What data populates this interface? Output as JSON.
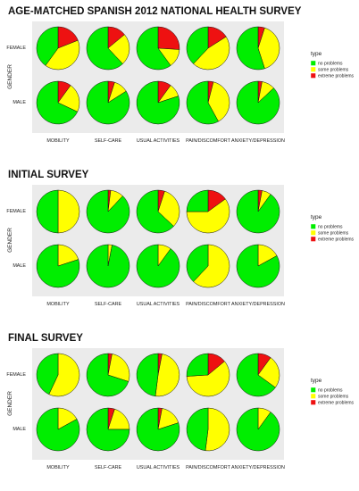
{
  "chart_data": [
    {
      "type": "pie",
      "title": "AGE-MATCHED SPANISH 2012 NATIONAL HEALTH SURVEY",
      "ylabel": "GENDER",
      "columns": [
        "MOBILITY",
        "SELF-CARE",
        "USUAL ACTIVITIES",
        "PAIN/DISCOMFORT",
        "ANXIETY/DEPRESSION"
      ],
      "rows": [
        "FEMALE",
        "MALE"
      ],
      "categories": [
        "no problems",
        "some problems",
        "extreme problems"
      ],
      "values": [
        [
          [
            40,
            41,
            19
          ],
          [
            62,
            24,
            14
          ],
          [
            60,
            14,
            26
          ],
          [
            38,
            46,
            16
          ],
          [
            55,
            40,
            5
          ]
        ],
        [
          [
            68,
            22,
            10
          ],
          [
            84,
            11,
            5
          ],
          [
            80,
            10,
            10
          ],
          [
            58,
            38,
            4
          ],
          [
            87,
            10,
            3
          ]
        ]
      ]
    },
    {
      "type": "pie",
      "title": "INITIAL SURVEY",
      "ylabel": "GENDER",
      "columns": [
        "MOBILITY",
        "SELF-CARE",
        "USUAL ACTIVITIES",
        "PAIN/DISCOMFORT",
        "ANXIETY/DEPRESSION"
      ],
      "rows": [
        "FEMALE",
        "MALE"
      ],
      "categories": [
        "no problems",
        "some problems",
        "extreme problems"
      ],
      "values": [
        [
          [
            50,
            50,
            0
          ],
          [
            88,
            10,
            2
          ],
          [
            63,
            32,
            5
          ],
          [
            25,
            60,
            15
          ],
          [
            90,
            7,
            3
          ]
        ],
        [
          [
            80,
            20,
            0
          ],
          [
            97,
            3,
            0
          ],
          [
            90,
            10,
            0
          ],
          [
            38,
            62,
            0
          ],
          [
            83,
            17,
            0
          ]
        ]
      ]
    },
    {
      "type": "pie",
      "title": "FINAL SURVEY",
      "ylabel": "GENDER",
      "columns": [
        "MOBILITY",
        "SELF-CARE",
        "USUAL ACTIVITIES",
        "PAIN/DISCOMFORT",
        "ANXIETY/DEPRESSION"
      ],
      "rows": [
        "FEMALE",
        "MALE"
      ],
      "categories": [
        "no problems",
        "some problems",
        "extreme problems"
      ],
      "values": [
        [
          [
            43,
            57,
            0
          ],
          [
            70,
            27,
            3
          ],
          [
            48,
            49,
            3
          ],
          [
            26,
            60,
            14
          ],
          [
            65,
            25,
            10
          ]
        ],
        [
          [
            83,
            17,
            0
          ],
          [
            75,
            20,
            5
          ],
          [
            80,
            17,
            3
          ],
          [
            48,
            52,
            0
          ],
          [
            90,
            10,
            0
          ]
        ]
      ]
    }
  ],
  "legend": {
    "title": "type",
    "items": [
      {
        "label": "no problems",
        "color": "#00ee00"
      },
      {
        "label": "some problems",
        "color": "#ffff00"
      },
      {
        "label": "extreme problems",
        "color": "#ee1111"
      }
    ]
  }
}
